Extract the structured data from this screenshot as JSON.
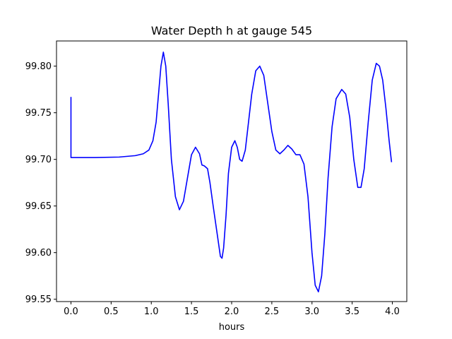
{
  "chart_data": {
    "type": "line",
    "title": "Water Depth h at gauge 545",
    "xlabel": "hours",
    "ylabel": "",
    "xlim": [
      -0.18,
      4.18
    ],
    "ylim": [
      99.5475,
      99.827
    ],
    "x_ticks": [
      0.0,
      0.5,
      1.0,
      1.5,
      2.0,
      2.5,
      3.0,
      3.5,
      4.0
    ],
    "x_tick_labels": [
      "0.0",
      "0.5",
      "1.0",
      "1.5",
      "2.0",
      "2.5",
      "3.0",
      "3.5",
      "4.0"
    ],
    "y_ticks": [
      99.55,
      99.6,
      99.65,
      99.7,
      99.75,
      99.8
    ],
    "y_tick_labels": [
      "99.55",
      "99.60",
      "99.65",
      "99.70",
      "99.75",
      "99.80"
    ],
    "grid": false,
    "series": [
      {
        "color": "#0000ff",
        "x": [
          0.0,
          0.0,
          0.01,
          0.3,
          0.6,
          0.8,
          0.9,
          0.97,
          1.02,
          1.06,
          1.09,
          1.12,
          1.15,
          1.18,
          1.21,
          1.25,
          1.3,
          1.35,
          1.4,
          1.45,
          1.5,
          1.55,
          1.6,
          1.63,
          1.66,
          1.7,
          1.73,
          1.77,
          1.82,
          1.86,
          1.88,
          1.9,
          1.93,
          1.96,
          2.0,
          2.04,
          2.07,
          2.1,
          2.13,
          2.17,
          2.21,
          2.25,
          2.3,
          2.35,
          2.4,
          2.45,
          2.5,
          2.55,
          2.6,
          2.65,
          2.7,
          2.75,
          2.8,
          2.85,
          2.9,
          2.95,
          3.0,
          3.04,
          3.08,
          3.12,
          3.16,
          3.2,
          3.25,
          3.3,
          3.37,
          3.42,
          3.47,
          3.52,
          3.57,
          3.61,
          3.65,
          3.7,
          3.75,
          3.8,
          3.84,
          3.88,
          3.92,
          3.96,
          3.99
        ],
        "y": [
          99.767,
          99.702,
          99.702,
          99.702,
          99.7025,
          99.704,
          99.706,
          99.71,
          99.72,
          99.74,
          99.77,
          99.8,
          99.815,
          99.8,
          99.76,
          99.7,
          99.66,
          99.646,
          99.655,
          99.68,
          99.705,
          99.713,
          99.706,
          99.694,
          99.693,
          99.69,
          99.675,
          99.65,
          99.62,
          99.596,
          99.594,
          99.605,
          99.64,
          99.685,
          99.713,
          99.72,
          99.713,
          99.7,
          99.698,
          99.71,
          99.74,
          99.77,
          99.795,
          99.8,
          99.79,
          99.76,
          99.73,
          99.71,
          99.706,
          99.71,
          99.715,
          99.711,
          99.705,
          99.705,
          99.695,
          99.66,
          99.6,
          99.565,
          99.558,
          99.575,
          99.62,
          99.68,
          99.735,
          99.765,
          99.775,
          99.77,
          99.745,
          99.7,
          99.67,
          99.67,
          99.69,
          99.74,
          99.785,
          99.803,
          99.8,
          99.785,
          99.755,
          99.72,
          99.697
        ]
      }
    ]
  }
}
